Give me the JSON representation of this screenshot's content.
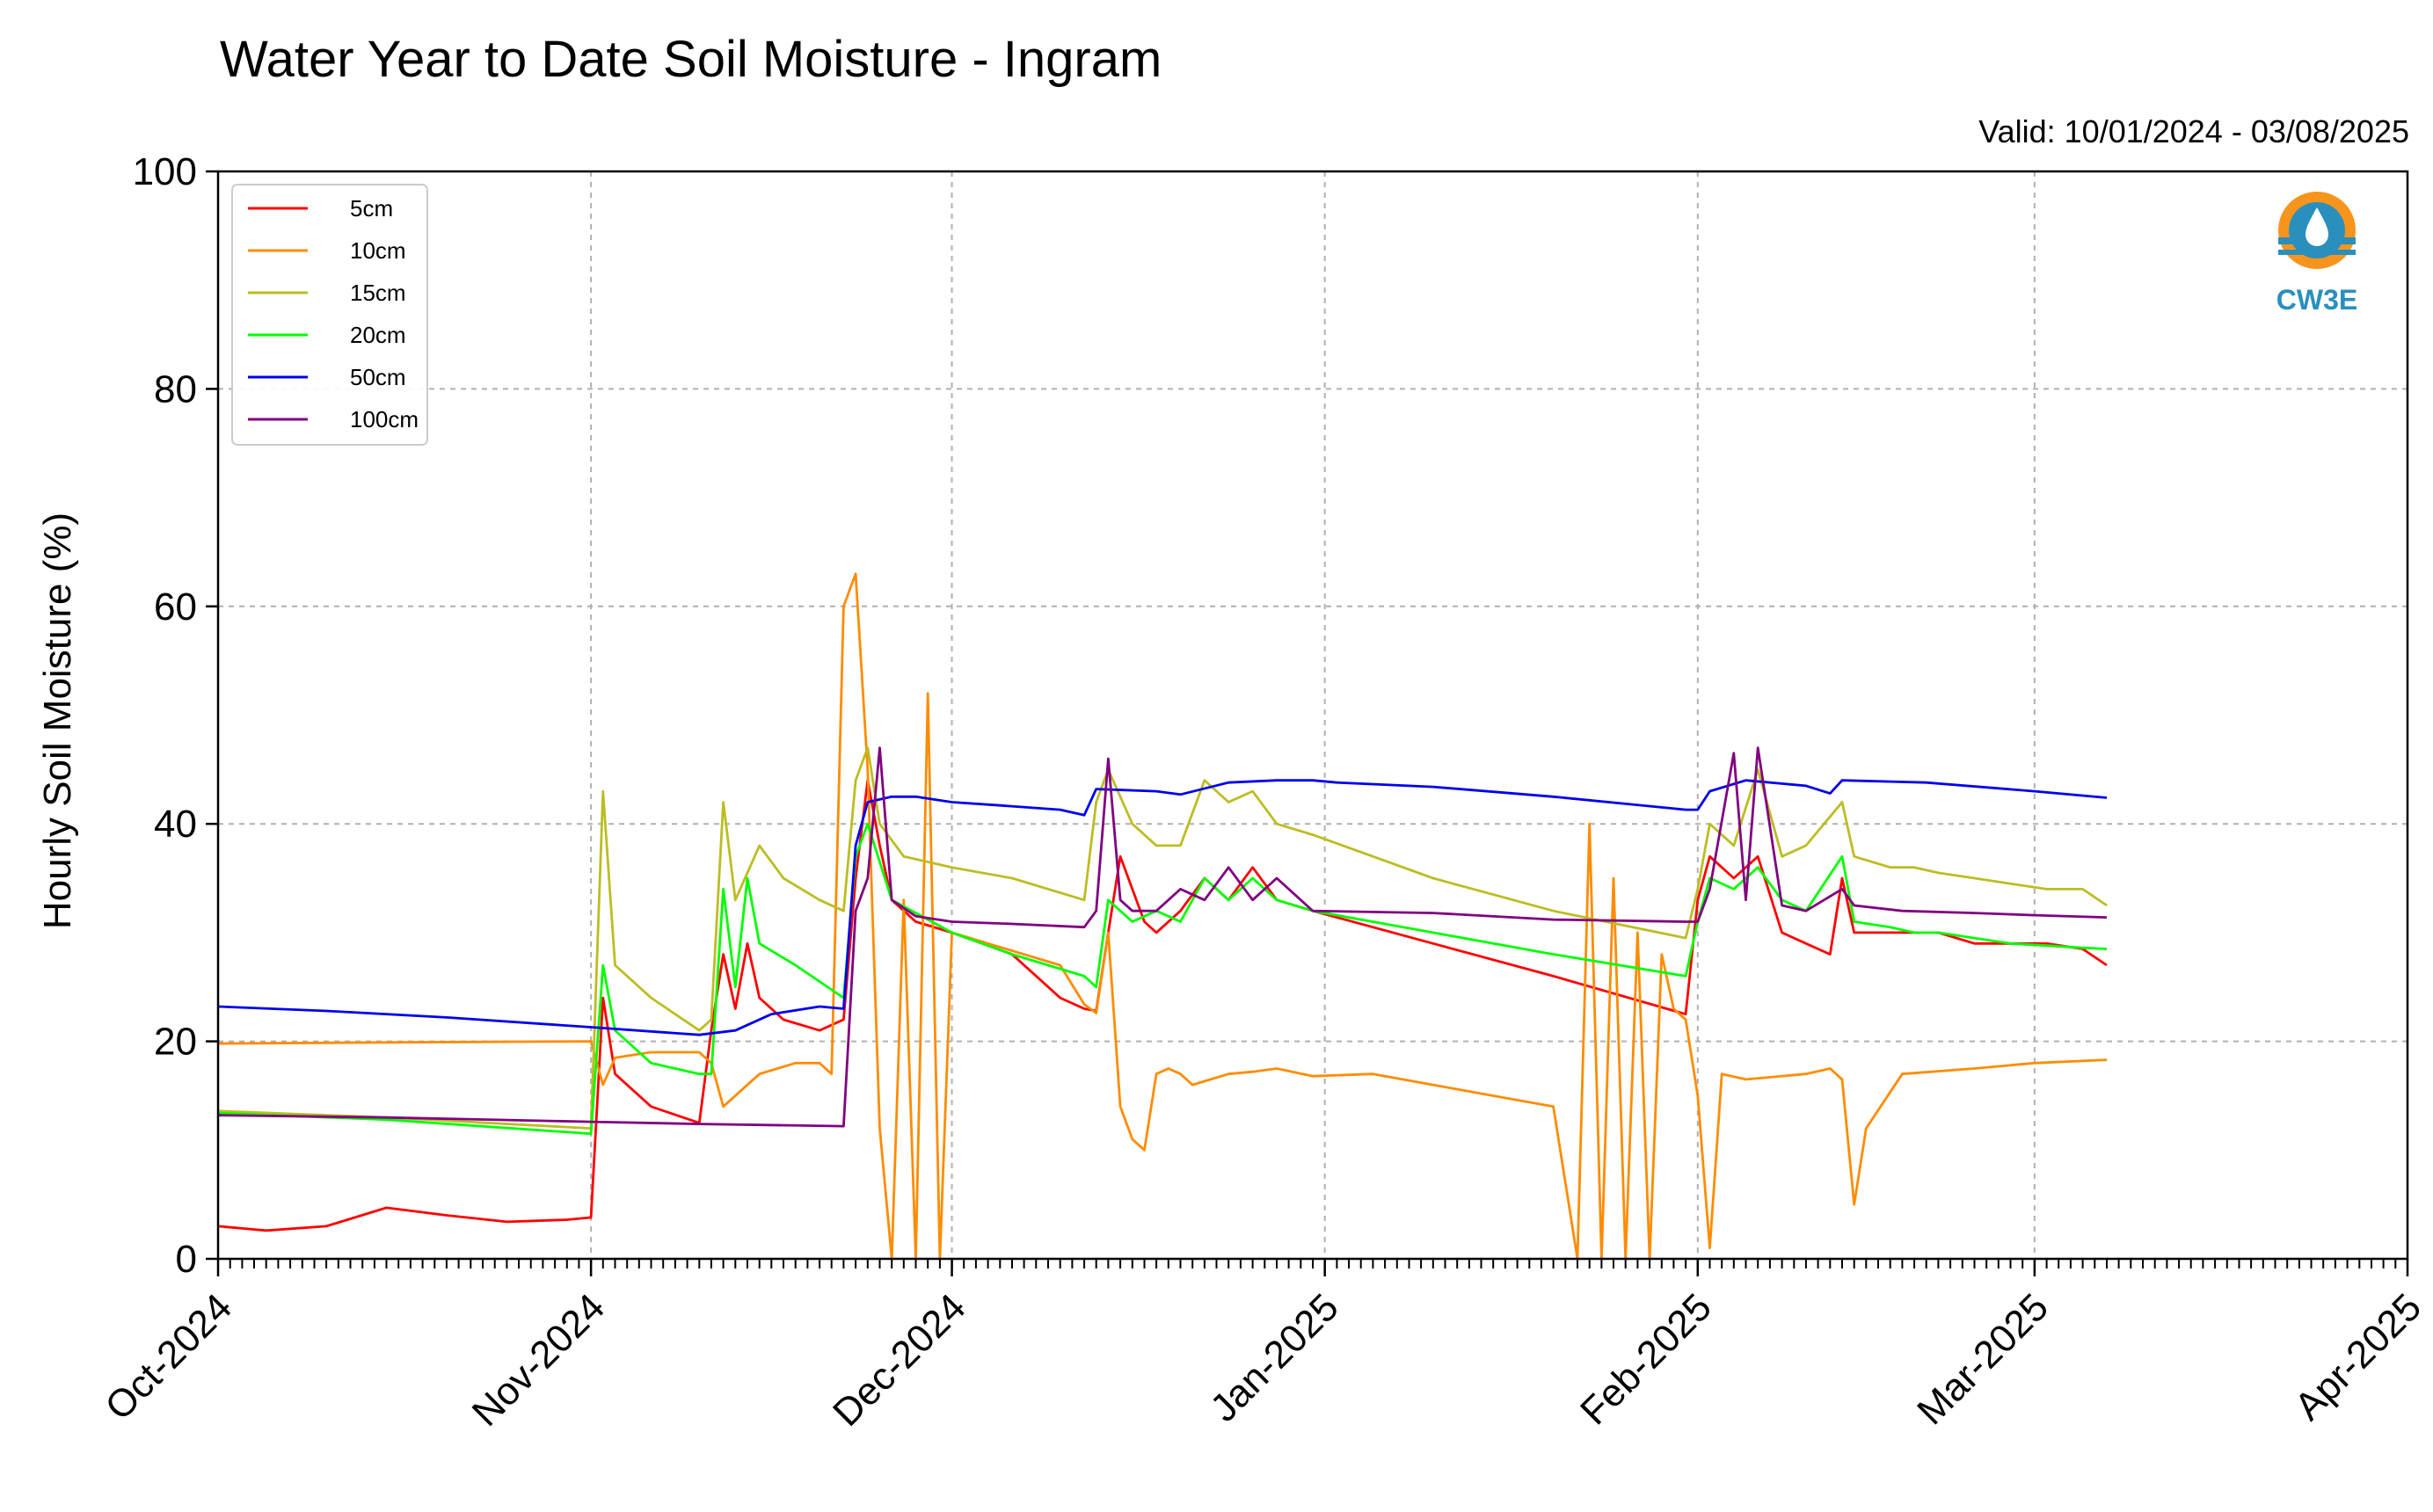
{
  "chart_data": {
    "type": "line",
    "title": "Water Year to Date Soil Moisture - Ingram",
    "valid_text": "Valid: 10/01/2024 - 03/08/2025",
    "ylabel": "Hourly Soil Moisture (%)",
    "xlabel": "",
    "ylim": [
      0,
      100
    ],
    "xlim": [
      "2024-10-01",
      "2025-04-01"
    ],
    "y_ticks": [
      0,
      20,
      40,
      60,
      80,
      100
    ],
    "x_ticks": [
      {
        "date": "2024-10-01",
        "label": "Oct-2024"
      },
      {
        "date": "2024-11-01",
        "label": "Nov-2024"
      },
      {
        "date": "2024-12-01",
        "label": "Dec-2024"
      },
      {
        "date": "2025-01-01",
        "label": "Jan-2025"
      },
      {
        "date": "2025-02-01",
        "label": "Feb-2025"
      },
      {
        "date": "2025-03-01",
        "label": "Mar-2025"
      },
      {
        "date": "2025-04-01",
        "label": "Apr-2025"
      }
    ],
    "grid": true,
    "legend_position": "top-left",
    "logo_text": "CW3E",
    "series": [
      {
        "name": "5cm",
        "color": "#ff0000",
        "x": [
          "2024-10-01",
          "2024-10-05",
          "2024-10-10",
          "2024-10-15",
          "2024-10-20",
          "2024-10-25",
          "2024-10-30",
          "2024-11-01",
          "2024-11-02",
          "2024-11-03",
          "2024-11-06",
          "2024-11-10",
          "2024-11-11",
          "2024-11-12",
          "2024-11-13",
          "2024-11-14",
          "2024-11-15",
          "2024-11-17",
          "2024-11-20",
          "2024-11-22",
          "2024-11-23",
          "2024-11-24",
          "2024-11-25",
          "2024-11-26",
          "2024-11-28",
          "2024-12-01",
          "2024-12-06",
          "2024-12-10",
          "2024-12-12",
          "2024-12-13",
          "2024-12-14",
          "2024-12-15",
          "2024-12-17",
          "2024-12-18",
          "2024-12-20",
          "2024-12-22",
          "2024-12-24",
          "2024-12-26",
          "2024-12-28",
          "2024-12-31",
          "2025-01-10",
          "2025-01-20",
          "2025-01-31",
          "2025-02-01",
          "2025-02-02",
          "2025-02-04",
          "2025-02-06",
          "2025-02-08",
          "2025-02-10",
          "2025-02-12",
          "2025-02-13",
          "2025-02-14",
          "2025-02-17",
          "2025-02-19",
          "2025-02-21",
          "2025-02-24",
          "2025-02-27",
          "2025-03-02",
          "2025-03-05",
          "2025-03-07"
        ],
        "y": [
          3,
          2.6,
          3,
          4.7,
          4,
          3.4,
          3.6,
          3.8,
          24,
          17,
          14,
          12.5,
          21,
          28,
          23,
          29,
          24,
          22,
          21,
          22,
          35,
          44,
          38,
          33,
          31,
          30,
          28,
          24,
          23,
          22.8,
          30,
          37,
          31,
          30,
          32,
          35,
          33,
          36,
          33,
          32,
          29,
          26,
          22.5,
          33,
          37,
          35,
          37,
          30,
          29,
          28,
          35,
          30,
          30,
          30,
          30,
          29,
          29,
          29,
          28.5,
          27
        ]
      },
      {
        "name": "10cm",
        "color": "#ff8c00",
        "x": [
          "2024-10-01",
          "2024-10-15",
          "2024-11-01",
          "2024-11-02",
          "2024-11-03",
          "2024-11-06",
          "2024-11-10",
          "2024-11-11",
          "2024-11-12",
          "2024-11-15",
          "2024-11-18",
          "2024-11-20",
          "2024-11-21",
          "2024-11-22",
          "2024-11-23",
          "2024-11-24",
          "2024-11-25",
          "2024-11-26",
          "2024-11-27",
          "2024-11-28",
          "2024-11-29",
          "2024-11-30",
          "2024-12-01",
          "2024-12-10",
          "2024-12-12",
          "2024-12-13",
          "2024-12-14",
          "2024-12-15",
          "2024-12-16",
          "2024-12-17",
          "2024-12-18",
          "2024-12-19",
          "2024-12-20",
          "2024-12-21",
          "2024-12-24",
          "2024-12-26",
          "2024-12-28",
          "2024-12-31",
          "2025-01-05",
          "2025-01-10",
          "2025-01-15",
          "2025-01-20",
          "2025-01-22",
          "2025-01-23",
          "2025-01-24",
          "2025-01-25",
          "2025-01-26",
          "2025-01-27",
          "2025-01-28",
          "2025-01-29",
          "2025-01-30",
          "2025-01-31",
          "2025-02-01",
          "2025-02-02",
          "2025-02-03",
          "2025-02-05",
          "2025-02-10",
          "2025-02-12",
          "2025-02-13",
          "2025-02-14",
          "2025-02-15",
          "2025-02-18",
          "2025-02-24",
          "2025-03-01",
          "2025-03-07"
        ],
        "y": [
          19.8,
          19.9,
          20,
          16,
          18.5,
          19,
          19,
          18,
          14,
          17,
          18,
          18,
          17,
          60,
          63,
          45,
          12,
          0,
          33,
          0,
          52,
          0,
          30,
          27,
          23.4,
          22.6,
          30,
          14,
          11,
          10,
          17,
          17.5,
          17,
          16,
          17,
          17.2,
          17.5,
          16.8,
          17,
          16,
          15,
          14,
          0,
          40,
          0,
          35,
          0,
          30,
          0,
          28,
          23,
          22,
          15,
          1,
          17,
          16.5,
          17,
          17.5,
          16.5,
          5,
          12,
          17,
          17.5,
          18,
          18.3
        ]
      },
      {
        "name": "15cm",
        "color": "#bcbd22",
        "x": [
          "2024-10-01",
          "2024-10-15",
          "2024-11-01",
          "2024-11-02",
          "2024-11-03",
          "2024-11-06",
          "2024-11-10",
          "2024-11-11",
          "2024-11-12",
          "2024-11-13",
          "2024-11-15",
          "2024-11-17",
          "2024-11-20",
          "2024-11-22",
          "2024-11-23",
          "2024-11-24",
          "2024-11-25",
          "2024-11-27",
          "2024-12-01",
          "2024-12-06",
          "2024-12-12",
          "2024-12-13",
          "2024-12-14",
          "2024-12-16",
          "2024-12-18",
          "2024-12-20",
          "2024-12-22",
          "2024-12-24",
          "2024-12-26",
          "2024-12-28",
          "2024-12-31",
          "2025-01-10",
          "2025-01-20",
          "2025-01-31",
          "2025-02-01",
          "2025-02-02",
          "2025-02-04",
          "2025-02-06",
          "2025-02-08",
          "2025-02-10",
          "2025-02-13",
          "2025-02-14",
          "2025-02-17",
          "2025-02-19",
          "2025-02-21",
          "2025-02-24",
          "2025-02-27",
          "2025-03-02",
          "2025-03-05",
          "2025-03-07"
        ],
        "y": [
          13.6,
          13,
          12,
          43,
          27,
          24,
          21,
          22,
          42,
          33,
          38,
          35,
          33,
          32,
          44,
          47,
          40,
          37,
          36,
          35,
          33,
          42,
          45,
          40,
          38,
          38,
          44,
          42,
          43,
          40,
          39,
          35,
          32,
          29.5,
          34,
          40,
          38,
          45,
          37,
          38,
          42,
          37,
          36,
          36,
          35.5,
          35,
          34.5,
          34,
          34,
          32.5
        ]
      },
      {
        "name": "20cm",
        "color": "#00ff00",
        "x": [
          "2024-10-01",
          "2024-10-15",
          "2024-11-01",
          "2024-11-02",
          "2024-11-03",
          "2024-11-06",
          "2024-11-10",
          "2024-11-11",
          "2024-11-12",
          "2024-11-13",
          "2024-11-14",
          "2024-11-15",
          "2024-11-18",
          "2024-11-22",
          "2024-11-23",
          "2024-11-24",
          "2024-11-26",
          "2024-12-01",
          "2024-12-06",
          "2024-12-12",
          "2024-12-13",
          "2024-12-14",
          "2024-12-16",
          "2024-12-18",
          "2024-12-20",
          "2024-12-22",
          "2024-12-24",
          "2024-12-26",
          "2024-12-28",
          "2024-12-31",
          "2025-01-10",
          "2025-01-20",
          "2025-01-31",
          "2025-02-01",
          "2025-02-02",
          "2025-02-04",
          "2025-02-06",
          "2025-02-08",
          "2025-02-10",
          "2025-02-13",
          "2025-02-14",
          "2025-02-17",
          "2025-02-19",
          "2025-02-21",
          "2025-02-24",
          "2025-02-27",
          "2025-03-02",
          "2025-03-05",
          "2025-03-07"
        ],
        "y": [
          13.4,
          12.8,
          11.5,
          27,
          21,
          18,
          17,
          17,
          34,
          25,
          35,
          29,
          27,
          24,
          37,
          40,
          33,
          30,
          28,
          26,
          25,
          33,
          31,
          32,
          31,
          35,
          33,
          35,
          33,
          32,
          30,
          28,
          26,
          31,
          35,
          34,
          36,
          33,
          32,
          37,
          31,
          30.5,
          30,
          30,
          29.5,
          29,
          28.8,
          28.6,
          28.5
        ]
      },
      {
        "name": "50cm",
        "color": "#0000ee",
        "x": [
          "2024-10-01",
          "2024-10-10",
          "2024-10-20",
          "2024-11-01",
          "2024-11-10",
          "2024-11-13",
          "2024-11-16",
          "2024-11-20",
          "2024-11-22",
          "2024-11-23",
          "2024-11-24",
          "2024-11-26",
          "2024-11-28",
          "2024-12-01",
          "2024-12-05",
          "2024-12-10",
          "2024-12-12",
          "2024-12-13",
          "2024-12-18",
          "2024-12-20",
          "2024-12-24",
          "2024-12-28",
          "2024-12-31",
          "2025-01-02",
          "2025-01-10",
          "2025-01-20",
          "2025-01-31",
          "2025-02-01",
          "2025-02-02",
          "2025-02-05",
          "2025-02-10",
          "2025-02-12",
          "2025-02-13",
          "2025-02-20",
          "2025-03-01",
          "2025-03-07"
        ],
        "y": [
          23.2,
          22.8,
          22.2,
          21.3,
          20.6,
          21,
          22.5,
          23.2,
          23,
          38,
          42,
          42.5,
          42.5,
          42,
          41.7,
          41.3,
          40.8,
          43.2,
          43,
          42.7,
          43.8,
          44,
          44,
          43.8,
          43.4,
          42.5,
          41.3,
          41.3,
          43,
          44,
          43.5,
          42.8,
          44,
          43.8,
          43,
          42.4
        ]
      },
      {
        "name": "100cm",
        "color": "#800080",
        "x": [
          "2024-10-01",
          "2024-10-15",
          "2024-11-01",
          "2024-11-10",
          "2024-11-22",
          "2024-11-23",
          "2024-11-24",
          "2024-11-25",
          "2024-11-26",
          "2024-11-28",
          "2024-12-01",
          "2024-12-06",
          "2024-12-12",
          "2024-12-13",
          "2024-12-14",
          "2024-12-15",
          "2024-12-16",
          "2024-12-18",
          "2024-12-20",
          "2024-12-22",
          "2024-12-24",
          "2024-12-26",
          "2024-12-28",
          "2024-12-31",
          "2025-01-10",
          "2025-01-20",
          "2025-01-31",
          "2025-02-01",
          "2025-02-02",
          "2025-02-04",
          "2025-02-05",
          "2025-02-06",
          "2025-02-08",
          "2025-02-10",
          "2025-02-13",
          "2025-02-14",
          "2025-02-18",
          "2025-02-24",
          "2025-03-01",
          "2025-03-07"
        ],
        "y": [
          13.2,
          13,
          12.6,
          12.4,
          12.2,
          32,
          35,
          47,
          33,
          31.5,
          31,
          30.8,
          30.5,
          32,
          46,
          33,
          32,
          32,
          34,
          33,
          36,
          33,
          35,
          32,
          31.8,
          31.2,
          31,
          31,
          34,
          46.5,
          33,
          47,
          32.5,
          32,
          34,
          32.5,
          32,
          31.8,
          31.6,
          31.4
        ]
      }
    ]
  }
}
